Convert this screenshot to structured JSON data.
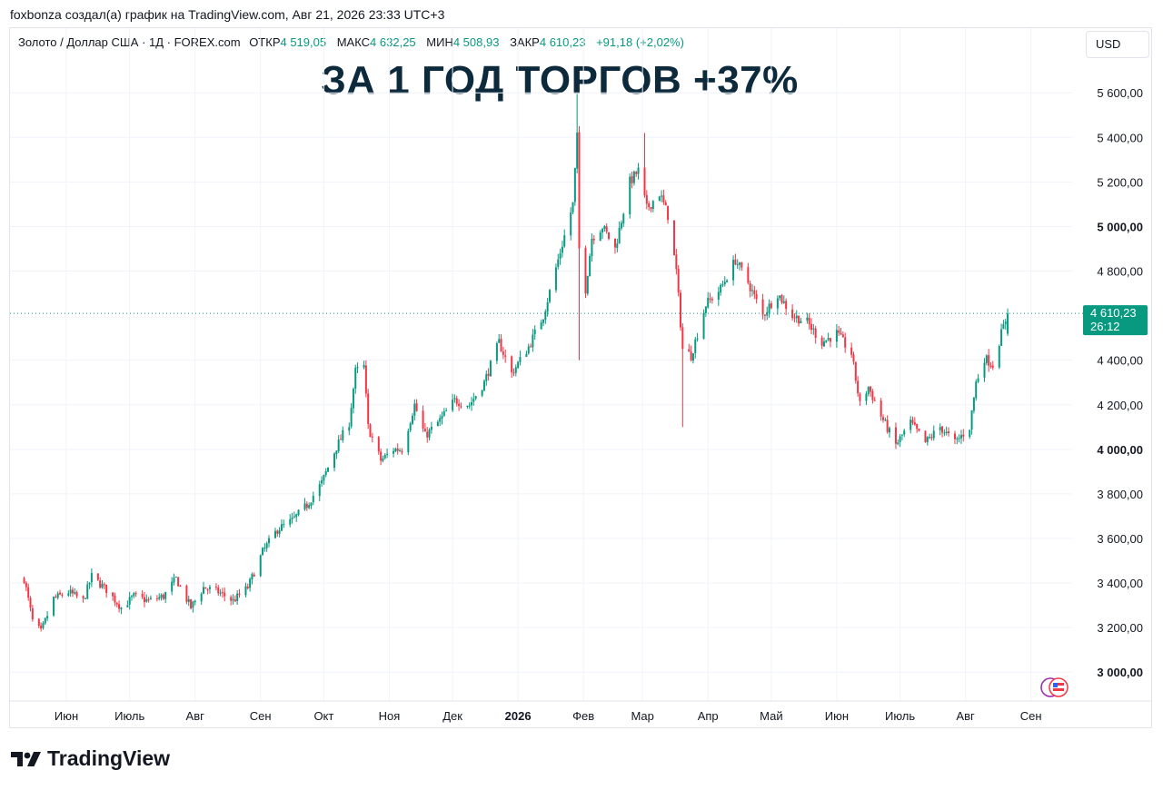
{
  "attribution": "foxbonza создал(а) график на TradingView.com, Авг 21, 2026 23:33 UTC+3",
  "legend": {
    "symbol": "Золото / Доллар США · 1Д · FOREX.com",
    "open_label": "ОТКР",
    "open_value": "4 519,05",
    "high_label": "МАКС",
    "high_value": "4 632,25",
    "low_label": "МИН",
    "low_value": "4 508,93",
    "close_label": "ЗАКР",
    "close_value": "4 610,23",
    "change": "+91,18 (+2,02%)"
  },
  "currency_button": "USD",
  "headline": "ЗА 1 ГОД ТОРГОВ +37%",
  "footer_brand": "TradingView",
  "colors": {
    "up": "#089981",
    "down": "#f23645",
    "headline": "#0c2a3b",
    "price_line": "#089981"
  },
  "chart_data": {
    "type": "candlestick",
    "title": "",
    "symbol": "XAUUSD",
    "ylim": [
      2880,
      5700
    ],
    "y_ticks": [
      {
        "value": 3000,
        "label": "3 000,00",
        "bold": true
      },
      {
        "value": 3200,
        "label": "3 200,00",
        "bold": false
      },
      {
        "value": 3400,
        "label": "3 400,00",
        "bold": false
      },
      {
        "value": 3600,
        "label": "3 600,00",
        "bold": false
      },
      {
        "value": 3800,
        "label": "3 800,00",
        "bold": false
      },
      {
        "value": 4000,
        "label": "4 000,00",
        "bold": true
      },
      {
        "value": 4200,
        "label": "4 200,00",
        "bold": false
      },
      {
        "value": 4400,
        "label": "4 400,00",
        "bold": false
      },
      {
        "value": 4800,
        "label": "4 800,00",
        "bold": false
      },
      {
        "value": 5000,
        "label": "5 000,00",
        "bold": true
      },
      {
        "value": 5200,
        "label": "5 200,00",
        "bold": false
      },
      {
        "value": 5400,
        "label": "5 400,00",
        "bold": false
      },
      {
        "value": 5600,
        "label": "5 600,00",
        "bold": false
      }
    ],
    "x_ticks": [
      {
        "date": "2025-06-01",
        "label": "Июн",
        "bold": false
      },
      {
        "date": "2025-07-01",
        "label": "Июль",
        "bold": false
      },
      {
        "date": "2025-08-01",
        "label": "Авг",
        "bold": false
      },
      {
        "date": "2025-09-01",
        "label": "Сен",
        "bold": false
      },
      {
        "date": "2025-10-01",
        "label": "Окт",
        "bold": false
      },
      {
        "date": "2025-11-01",
        "label": "Ноя",
        "bold": false
      },
      {
        "date": "2025-12-01",
        "label": "Дек",
        "bold": false
      },
      {
        "date": "2026-01-01",
        "label": "2026",
        "bold": true
      },
      {
        "date": "2026-02-01",
        "label": "Фев",
        "bold": false
      },
      {
        "date": "2026-03-01",
        "label": "Мар",
        "bold": false
      },
      {
        "date": "2026-04-01",
        "label": "Апр",
        "bold": false
      },
      {
        "date": "2026-05-01",
        "label": "Май",
        "bold": false
      },
      {
        "date": "2026-06-01",
        "label": "Июн",
        "bold": false
      },
      {
        "date": "2026-07-01",
        "label": "Июль",
        "bold": false
      },
      {
        "date": "2026-08-01",
        "label": "Авг",
        "bold": false
      },
      {
        "date": "2026-09-01",
        "label": "Сен",
        "bold": false
      }
    ],
    "last_price_label": {
      "price": 4610.23,
      "text": "4 610,23",
      "countdown": "26:12"
    },
    "close_path": [
      [
        "2025-05-12",
        3420
      ],
      [
        "2025-05-16",
        3230
      ],
      [
        "2025-05-20",
        3180
      ],
      [
        "2025-05-26",
        3330
      ],
      [
        "2025-06-02",
        3360
      ],
      [
        "2025-06-09",
        3320
      ],
      [
        "2025-06-13",
        3430
      ],
      [
        "2025-06-20",
        3370
      ],
      [
        "2025-06-27",
        3290
      ],
      [
        "2025-07-03",
        3340
      ],
      [
        "2025-07-10",
        3320
      ],
      [
        "2025-07-17",
        3340
      ],
      [
        "2025-07-23",
        3420
      ],
      [
        "2025-07-30",
        3290
      ],
      [
        "2025-08-05",
        3380
      ],
      [
        "2025-08-12",
        3360
      ],
      [
        "2025-08-19",
        3320
      ],
      [
        "2025-08-26",
        3380
      ],
      [
        "2025-09-02",
        3540
      ],
      [
        "2025-09-09",
        3640
      ],
      [
        "2025-09-16",
        3680
      ],
      [
        "2025-09-23",
        3750
      ],
      [
        "2025-09-30",
        3850
      ],
      [
        "2025-10-07",
        4010
      ],
      [
        "2025-10-13",
        4120
      ],
      [
        "2025-10-16",
        4350
      ],
      [
        "2025-10-20",
        4370
      ],
      [
        "2025-10-22",
        4100
      ],
      [
        "2025-10-28",
        3950
      ],
      [
        "2025-11-03",
        4000
      ],
      [
        "2025-11-07",
        4000
      ],
      [
        "2025-11-13",
        4200
      ],
      [
        "2025-11-18",
        4060
      ],
      [
        "2025-11-25",
        4130
      ],
      [
        "2025-12-02",
        4220
      ],
      [
        "2025-12-09",
        4200
      ],
      [
        "2025-12-16",
        4300
      ],
      [
        "2025-12-23",
        4480
      ],
      [
        "2025-12-29",
        4340
      ],
      [
        "2026-01-06",
        4460
      ],
      [
        "2026-01-13",
        4600
      ],
      [
        "2026-01-20",
        4850
      ],
      [
        "2026-01-27",
        5100
      ],
      [
        "2026-01-29",
        5400
      ],
      [
        "2026-01-30",
        4900
      ],
      [
        "2026-02-02",
        4720
      ],
      [
        "2026-02-05",
        4950
      ],
      [
        "2026-02-10",
        5000
      ],
      [
        "2026-02-16",
        4900
      ],
      [
        "2026-02-23",
        5200
      ],
      [
        "2026-02-27",
        5250
      ],
      [
        "2026-03-03",
        5080
      ],
      [
        "2026-03-09",
        5150
      ],
      [
        "2026-03-13",
        5050
      ],
      [
        "2026-03-17",
        4800
      ],
      [
        "2026-03-20",
        4450
      ],
      [
        "2026-03-24",
        4420
      ],
      [
        "2026-03-31",
        4650
      ],
      [
        "2026-04-07",
        4720
      ],
      [
        "2026-04-14",
        4850
      ],
      [
        "2026-04-20",
        4750
      ],
      [
        "2026-04-27",
        4600
      ],
      [
        "2026-05-04",
        4700
      ],
      [
        "2026-05-11",
        4600
      ],
      [
        "2026-05-18",
        4570
      ],
      [
        "2026-05-25",
        4480
      ],
      [
        "2026-06-01",
        4520
      ],
      [
        "2026-06-08",
        4430
      ],
      [
        "2026-06-12",
        4200
      ],
      [
        "2026-06-16",
        4280
      ],
      [
        "2026-06-22",
        4150
      ],
      [
        "2026-06-29",
        4020
      ],
      [
        "2026-07-06",
        4120
      ],
      [
        "2026-07-13",
        4030
      ],
      [
        "2026-07-20",
        4100
      ],
      [
        "2026-07-27",
        4030
      ],
      [
        "2026-08-03",
        4100
      ],
      [
        "2026-08-06",
        4300
      ],
      [
        "2026-08-10",
        4410
      ],
      [
        "2026-08-14",
        4380
      ],
      [
        "2026-08-18",
        4520
      ],
      [
        "2026-08-21",
        4610
      ]
    ]
  }
}
